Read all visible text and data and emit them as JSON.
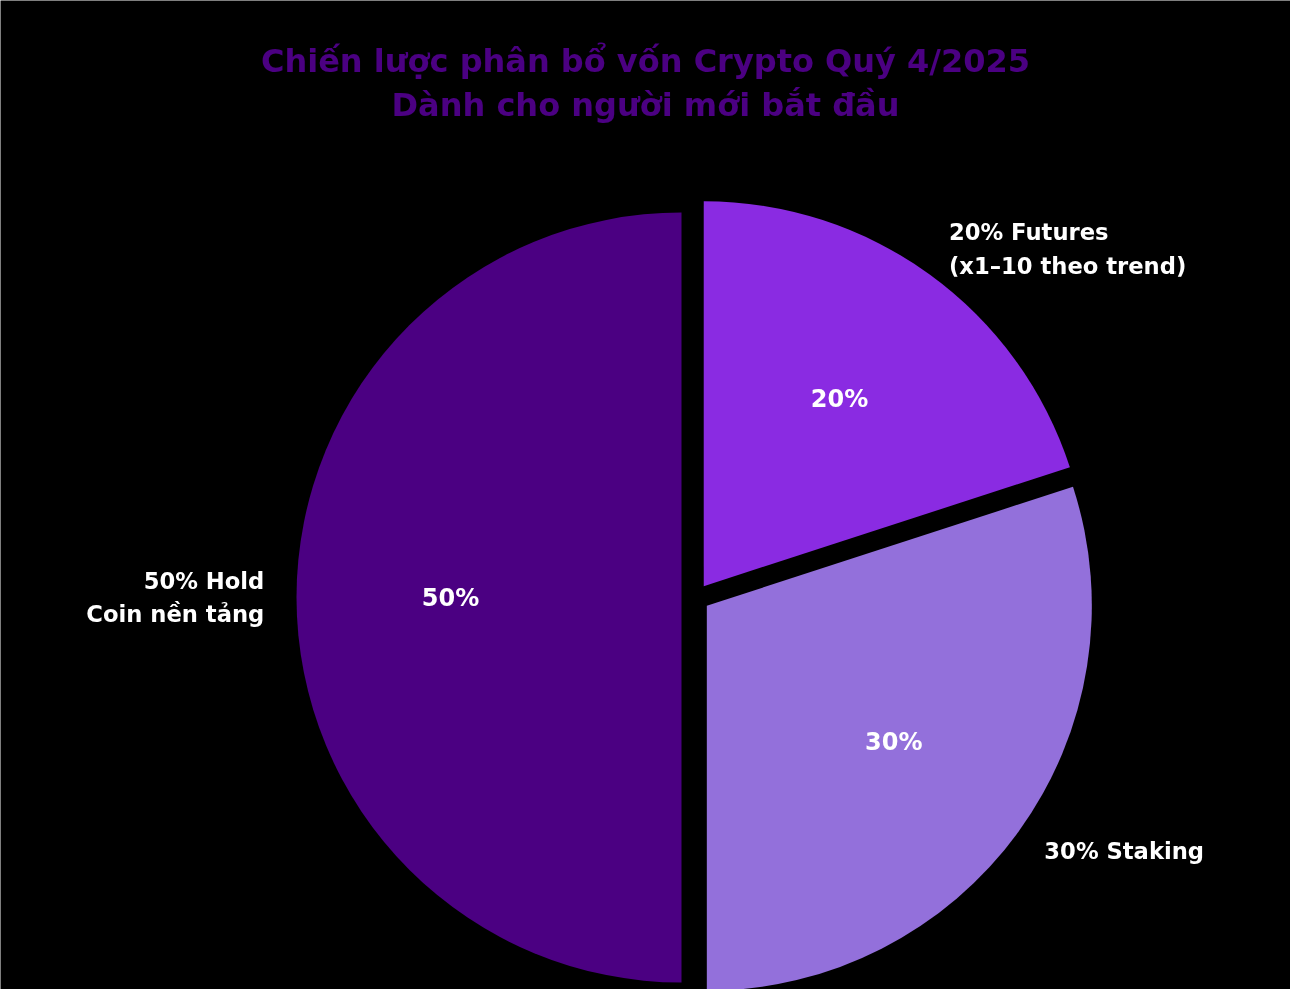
{
  "chart_data": {
    "type": "pie",
    "title": "Chiến lược phân bổ vốn Crypto Quý 4/2025\nDành cho người mới bắt đầu",
    "categories": [
      "20% Futures\n(x1–10 theo trend)",
      "30% Staking",
      "50% Hold\nCoin nền tảng"
    ],
    "values": [
      20,
      30,
      50
    ],
    "colors": [
      "#8a2be2",
      "#9370db",
      "#4b0082"
    ],
    "value_labels": [
      "20%",
      "30%",
      "50%"
    ]
  }
}
